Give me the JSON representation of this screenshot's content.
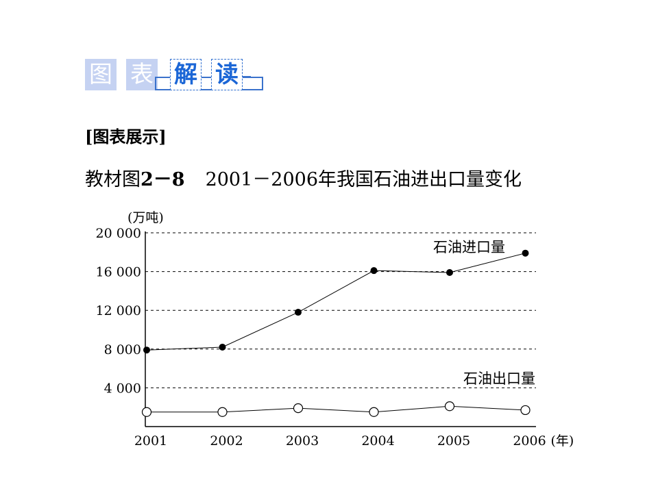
{
  "banner": {
    "chars": [
      "图",
      "表",
      "解",
      "读"
    ]
  },
  "section_label": "[图表展示]",
  "caption": {
    "prefix": "教材图",
    "figure_number": "2－8",
    "title": "2001－2006年我国石油进出口量变化"
  },
  "chart_data": {
    "type": "line",
    "title": "2001－2006年我国石油进出口量变化",
    "xlabel": "(年)",
    "ylabel": "(万吨)",
    "categories": [
      "2001",
      "2002",
      "2003",
      "2004",
      "2005",
      "2006"
    ],
    "y_ticks": [
      4000,
      8000,
      12000,
      16000,
      20000
    ],
    "y_tick_labels": [
      "4 000",
      "8 000",
      "12 000",
      "16 000",
      "20 000"
    ],
    "ylim": [
      0,
      20000
    ],
    "grid": "horizontal-dashed",
    "series": [
      {
        "name": "石油进口量",
        "marker": "filled-circle",
        "values": [
          7900,
          8200,
          11800,
          16100,
          15900,
          17900
        ]
      },
      {
        "name": "石油出口量",
        "marker": "open-circle",
        "values": [
          1500,
          1500,
          1900,
          1500,
          2100,
          1700
        ]
      }
    ]
  }
}
